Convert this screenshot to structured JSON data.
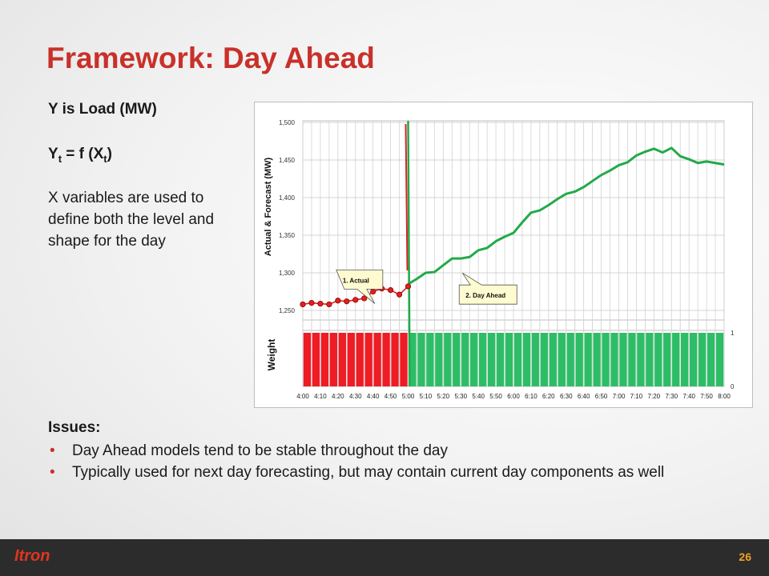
{
  "slide": {
    "title": "Framework:  Day Ahead",
    "left_line1": "Y is Load (MW)",
    "left_y": "Y",
    "left_t1": "t",
    "left_eq": " = f (X",
    "left_t2": "t",
    "left_close": ")",
    "left_para": "X variables are used to define both the level and shape for the day",
    "issues_title": "Issues:",
    "issues": [
      "Day Ahead models tend to be stable throughout the day",
      "Typically used for next day forecasting, but may contain current day components as well"
    ],
    "logo": "Itron",
    "page_number": "26"
  },
  "colors": {
    "title": "#c8312a",
    "actual": "#e02020",
    "forecast": "#22aa4a",
    "weight_red": "#ee1c24",
    "weight_green": "#2ebd67",
    "callout_fill": "#fffbd0",
    "footer_bg": "#2c2c2c",
    "page_number": "#f0a21e"
  },
  "chart_data": [
    {
      "type": "line",
      "ylabel": "Actual & Forecast (MW)",
      "ylim": [
        1250,
        1500
      ],
      "y_ticks": [
        "1,500",
        "1,450",
        "1,400",
        "1,350",
        "1,300",
        "1,250"
      ],
      "x_ticks": [
        "4:00",
        "4:10",
        "4:20",
        "4:30",
        "4:40",
        "4:50",
        "5:00",
        "5:10",
        "5:20",
        "5:30",
        "5:40",
        "5:50",
        "6:00",
        "6:10",
        "6:20",
        "6:30",
        "6:40",
        "6:50",
        "7:00",
        "7:10",
        "7:20",
        "7:30",
        "7:40",
        "7:50",
        "8:00"
      ],
      "grid": true,
      "series": [
        {
          "name": "1. Actual",
          "x": [
            "4:00",
            "4:05",
            "4:10",
            "4:15",
            "4:20",
            "4:25",
            "4:30",
            "4:35",
            "4:40",
            "4:45",
            "4:50",
            "4:55",
            "5:00"
          ],
          "values": [
            1258,
            1260,
            1259,
            1258,
            1263,
            1262,
            1264,
            1266,
            1275,
            1279,
            1277,
            1271,
            1282
          ]
        },
        {
          "name": "2. Day Ahead",
          "x": [
            "5:00",
            "5:05",
            "5:10",
            "5:15",
            "5:20",
            "5:25",
            "5:30",
            "5:35",
            "5:40",
            "5:45",
            "5:50",
            "5:55",
            "6:00",
            "6:05",
            "6:10",
            "6:15",
            "6:20",
            "6:25",
            "6:30",
            "6:35",
            "6:40",
            "6:45",
            "6:50",
            "6:55",
            "7:00",
            "7:05",
            "7:10",
            "7:15",
            "7:20",
            "7:25",
            "7:30",
            "7:35",
            "7:40",
            "7:45",
            "7:50",
            "7:55",
            "8:00"
          ],
          "values": [
            1285,
            1292,
            1300,
            1301,
            1310,
            1319,
            1319,
            1321,
            1330,
            1333,
            1342,
            1348,
            1353,
            1367,
            1380,
            1383,
            1390,
            1398,
            1405,
            1408,
            1414,
            1422,
            1430,
            1436,
            1443,
            1447,
            1456,
            1461,
            1465,
            1460,
            1466,
            1455,
            1451,
            1446,
            1448,
            1446,
            1444
          ]
        }
      ],
      "vline_at": "5:00",
      "callouts": [
        "1. Actual",
        "2. Day Ahead"
      ]
    },
    {
      "type": "bar",
      "ylabel": "Weight",
      "ylim": [
        0,
        1
      ],
      "y_ticks": [
        "1",
        "0"
      ],
      "series": [
        {
          "name": "Actual",
          "x_range": [
            "4:00",
            "5:00"
          ],
          "value": 1
        },
        {
          "name": "Day Ahead",
          "x_range": [
            "5:00",
            "8:00"
          ],
          "value": 1
        }
      ]
    }
  ]
}
